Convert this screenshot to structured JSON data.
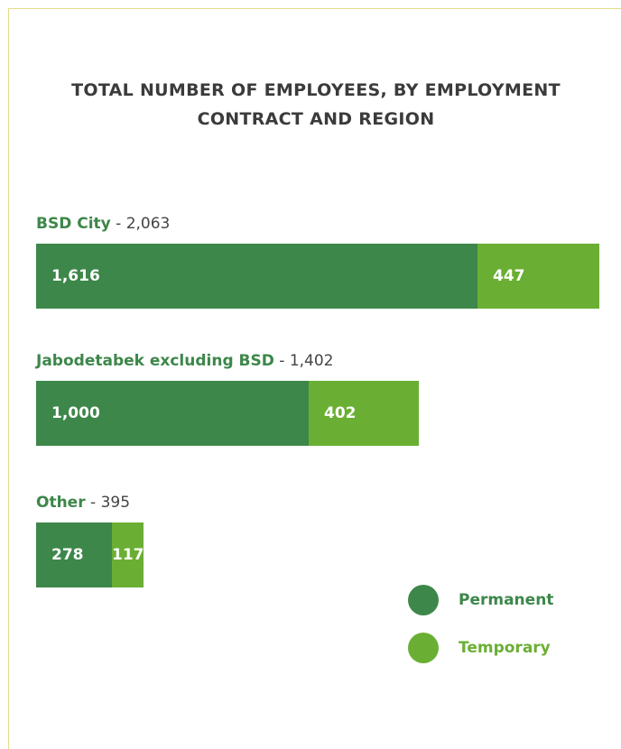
{
  "colors": {
    "permanent": "#3d874a",
    "temporary": "#6aaf33",
    "accent_text": "#3d874a",
    "muted_text": "#444444"
  },
  "chart_data": {
    "type": "bar",
    "orientation": "horizontal",
    "stacked": true,
    "title": "TOTAL NUMBER OF EMPLOYEES, BY EMPLOYMENT CONTRACT AND REGION",
    "categories": [
      "BSD City",
      "Jabodetabek excluding BSD",
      "Other"
    ],
    "category_totals": [
      "2,063",
      "1,402",
      "395"
    ],
    "series": [
      {
        "name": "Permanent",
        "values": [
          1616,
          1000,
          278
        ],
        "labels": [
          "1,616",
          "1,000",
          "278"
        ]
      },
      {
        "name": "Temporary",
        "values": [
          447,
          402,
          117
        ],
        "labels": [
          "447",
          "402",
          "117"
        ]
      }
    ],
    "legend_position": "bottom-right",
    "grid": false
  }
}
